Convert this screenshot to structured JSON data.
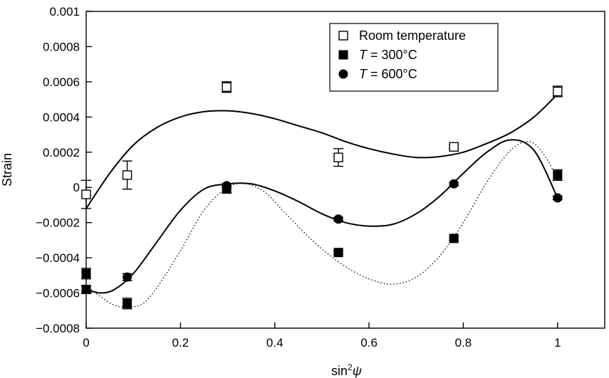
{
  "chart_data": {
    "type": "scatter",
    "title": "",
    "xlabel": {
      "main": "sin",
      "sup": "2",
      "symbol": "ψ"
    },
    "ylabel": "Strain",
    "xlim": [
      0,
      1.1
    ],
    "ylim": [
      -0.0008,
      0.001
    ],
    "x_ticks": [
      0,
      0.2,
      0.4,
      0.6,
      0.8,
      1
    ],
    "x_tick_labels": [
      "0",
      "0.2",
      "0.4",
      "0.6",
      "0.8",
      "1"
    ],
    "y_ticks": [
      0.001,
      0.0008,
      0.0006,
      0.0004,
      0.0002,
      0,
      -0.0002,
      -0.0004,
      -0.0006,
      -0.0008
    ],
    "y_tick_labels": [
      "0.001",
      "0.0008",
      "0.0006",
      "0.0004",
      "0.0002",
      "0",
      "−0.0002",
      "−0.0004",
      "−0.0006",
      "−0.0008"
    ],
    "grid": false,
    "legend_position": "top-right",
    "series": [
      {
        "legend": {
          "italic": "",
          "text": "Room temperature"
        },
        "marker": "open-square",
        "line_style": "solid",
        "points": [
          {
            "x": 0,
            "y": -4e-05,
            "err": 8e-05
          },
          {
            "x": 0.087,
            "y": 7e-05,
            "err": 8e-05
          },
          {
            "x": 0.298,
            "y": 0.00057,
            "err": 3e-05
          },
          {
            "x": 0.535,
            "y": 0.00017,
            "err": 5e-05
          },
          {
            "x": 0.78,
            "y": 0.00023,
            "err": 1e-05
          },
          {
            "x": 1.0,
            "y": 0.000545,
            "err": 3e-05
          }
        ],
        "fit": [
          [
            0,
            -0.00012
          ],
          [
            0.05,
            8e-05
          ],
          [
            0.1,
            0.00024
          ],
          [
            0.15,
            0.00034
          ],
          [
            0.2,
            0.0004
          ],
          [
            0.25,
            0.00043
          ],
          [
            0.3,
            0.000435
          ],
          [
            0.35,
            0.00042
          ],
          [
            0.4,
            0.00039
          ],
          [
            0.45,
            0.00035
          ],
          [
            0.5,
            0.00031
          ],
          [
            0.55,
            0.00026
          ],
          [
            0.6,
            0.00022
          ],
          [
            0.65,
            0.00019
          ],
          [
            0.7,
            0.00017
          ],
          [
            0.75,
            0.000175
          ],
          [
            0.8,
            0.0002
          ],
          [
            0.85,
            0.00025
          ],
          [
            0.9,
            0.00031
          ],
          [
            0.95,
            0.0004
          ],
          [
            1.0,
            0.00053
          ]
        ]
      },
      {
        "legend": {
          "italic": "T",
          "text": " = 300°C"
        },
        "marker": "filled-square",
        "line_style": "dotted",
        "points": [
          {
            "x": 0,
            "y": -0.00049,
            "err": 3e-05
          },
          {
            "x": 0,
            "y": -0.00058,
            "err": 2e-05
          },
          {
            "x": 0.087,
            "y": -0.00066,
            "err": 3e-05
          },
          {
            "x": 0.298,
            "y": -1e-05,
            "err": 2e-05
          },
          {
            "x": 0.535,
            "y": -0.00037,
            "err": 1e-05
          },
          {
            "x": 0.78,
            "y": -0.00029,
            "err": 1e-05
          },
          {
            "x": 1.0,
            "y": 7e-05,
            "err": 3e-05
          }
        ],
        "fit": [
          [
            0,
            -0.00056
          ],
          [
            0.03,
            -0.00062
          ],
          [
            0.06,
            -0.00067
          ],
          [
            0.09,
            -0.00068
          ],
          [
            0.12,
            -0.00066
          ],
          [
            0.15,
            -0.00057
          ],
          [
            0.2,
            -0.00036
          ],
          [
            0.25,
            -0.00013
          ],
          [
            0.3,
            0.0
          ],
          [
            0.34,
            2e-05
          ],
          [
            0.38,
            -3e-05
          ],
          [
            0.42,
            -0.00014
          ],
          [
            0.46,
            -0.00025
          ],
          [
            0.5,
            -0.00035
          ],
          [
            0.55,
            -0.00045
          ],
          [
            0.6,
            -0.00052
          ],
          [
            0.65,
            -0.00055
          ],
          [
            0.7,
            -0.00051
          ],
          [
            0.75,
            -0.00039
          ],
          [
            0.8,
            -0.0002
          ],
          [
            0.85,
            3e-05
          ],
          [
            0.9,
            0.00021
          ],
          [
            0.94,
            0.00026
          ],
          [
            0.97,
            0.00019
          ],
          [
            1.0,
            5e-05
          ]
        ]
      },
      {
        "legend": {
          "italic": "T",
          "text": " = 600°C"
        },
        "marker": "filled-circle",
        "line_style": "solid",
        "points": [
          {
            "x": 0,
            "y": -0.00058,
            "err": 2e-05
          },
          {
            "x": 0.087,
            "y": -0.00051,
            "err": 2e-05
          },
          {
            "x": 0.298,
            "y": 1e-05,
            "err": 1e-05
          },
          {
            "x": 0.535,
            "y": -0.00018,
            "err": 1e-05
          },
          {
            "x": 0.78,
            "y": 2e-05,
            "err": 1e-05
          },
          {
            "x": 1.0,
            "y": -6e-05,
            "err": 1e-05
          }
        ],
        "fit": [
          [
            0,
            -0.00058
          ],
          [
            0.03,
            -0.0006
          ],
          [
            0.06,
            -0.00058
          ],
          [
            0.1,
            -0.00049
          ],
          [
            0.15,
            -0.00031
          ],
          [
            0.2,
            -0.00013
          ],
          [
            0.25,
            -1e-05
          ],
          [
            0.3,
            2e-05
          ],
          [
            0.35,
            2e-05
          ],
          [
            0.4,
            -2e-05
          ],
          [
            0.45,
            -8e-05
          ],
          [
            0.5,
            -0.00015
          ],
          [
            0.55,
            -0.0002
          ],
          [
            0.6,
            -0.00022
          ],
          [
            0.65,
            -0.00021
          ],
          [
            0.7,
            -0.00015
          ],
          [
            0.75,
            -5e-05
          ],
          [
            0.8,
            8e-05
          ],
          [
            0.85,
            0.0002
          ],
          [
            0.9,
            0.00027
          ],
          [
            0.95,
            0.00021
          ],
          [
            1.0,
            -6e-05
          ]
        ]
      }
    ]
  }
}
